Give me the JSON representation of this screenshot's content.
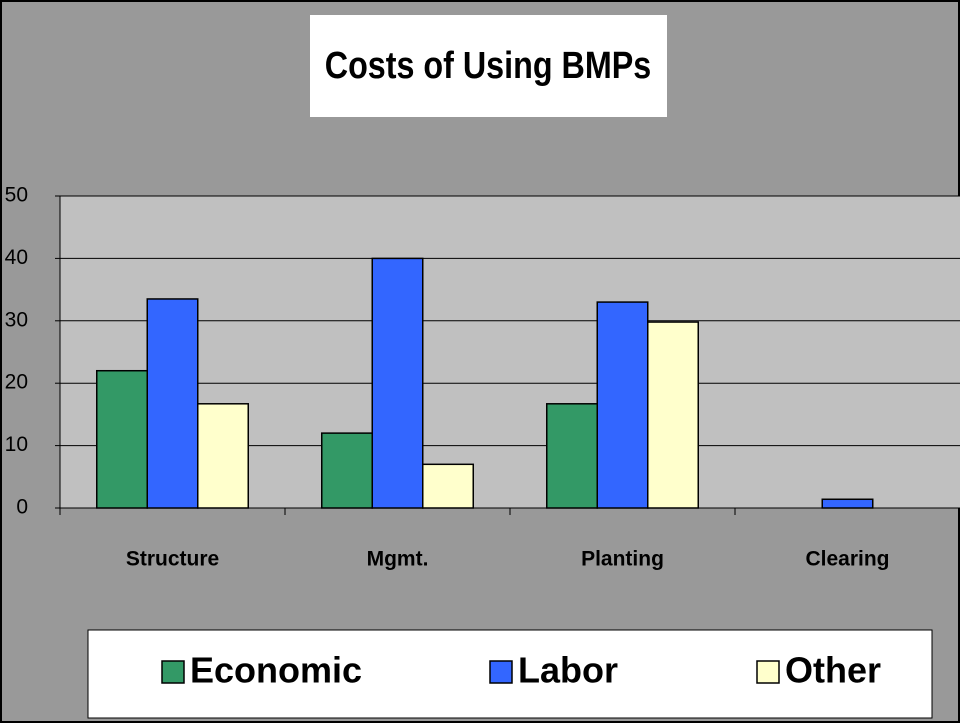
{
  "chart_data": {
    "type": "bar",
    "title": "Costs of Using BMPs",
    "categories": [
      "Structure",
      "Mgmt.",
      "Planting",
      "Clearing"
    ],
    "series": [
      {
        "name": "Economic",
        "color": "#339966",
        "values": [
          22,
          12,
          16.7,
          0
        ]
      },
      {
        "name": "Labor",
        "color": "#3366ff",
        "values": [
          33.5,
          40,
          33,
          1.4
        ]
      },
      {
        "name": "Other",
        "color": "#ffffcc",
        "values": [
          16.7,
          7,
          29.8,
          0
        ]
      }
    ],
    "ylim": [
      0,
      50
    ],
    "yticks": [
      0,
      10,
      20,
      30,
      40,
      50
    ],
    "grid": true,
    "legend": "bottom"
  }
}
